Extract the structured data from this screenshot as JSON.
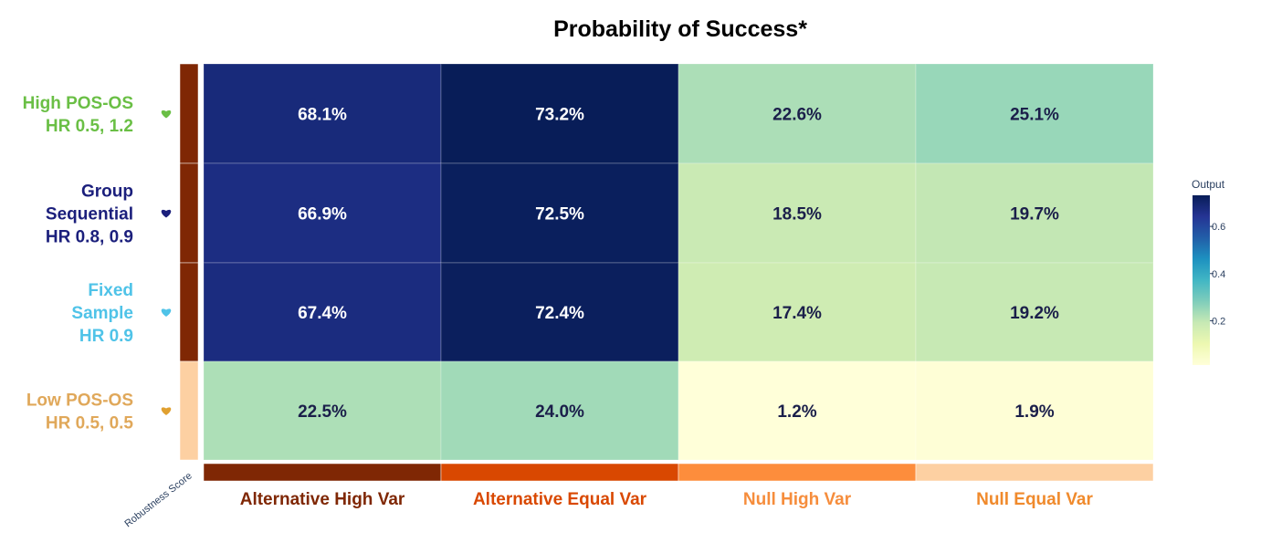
{
  "chart_data": {
    "type": "heatmap",
    "title": "Probability of Success*",
    "rows": [
      {
        "label_lines": [
          "High POS-OS",
          "HR 0.5, 1.2"
        ],
        "color": "#6abf45",
        "heart_color": "#6abf45",
        "band_color": "#7f2704"
      },
      {
        "label_lines": [
          "Group",
          "Sequential",
          "HR 0.8, 0.9"
        ],
        "color": "#1b1f7c",
        "heart_color": "#1b1f7c",
        "band_color": "#7f2704"
      },
      {
        "label_lines": [
          "Fixed",
          "Sample",
          "HR 0.9"
        ],
        "color": "#4fc3e8",
        "heart_color": "#4fc3e8",
        "band_color": "#7f2704"
      },
      {
        "label_lines": [
          "Low POS-OS",
          "HR 0.5, 0.5"
        ],
        "color": "#e0a85a",
        "heart_color": "#e0a030",
        "band_color": "#fdd0a2"
      }
    ],
    "columns": [
      {
        "label": "Alternative High Var",
        "color": "#7f2704",
        "band_color": "#7f2704"
      },
      {
        "label": "Alternative Equal Var",
        "color": "#d94801",
        "band_color": "#d94801"
      },
      {
        "label": "Null High Var",
        "color": "#f68d3c",
        "band_color": "#fd8d3c"
      },
      {
        "label": "Null Equal Var",
        "color": "#f08a2c",
        "band_color": "#fdd0a2"
      }
    ],
    "values": [
      [
        0.681,
        0.732,
        0.226,
        0.251
      ],
      [
        0.669,
        0.725,
        0.185,
        0.197
      ],
      [
        0.674,
        0.724,
        0.174,
        0.192
      ],
      [
        0.225,
        0.24,
        0.012,
        0.019
      ]
    ],
    "value_labels": [
      [
        "68.1%",
        "73.2%",
        "22.6%",
        "25.1%"
      ],
      [
        "66.9%",
        "72.5%",
        "18.5%",
        "19.7%"
      ],
      [
        "67.4%",
        "72.4%",
        "17.4%",
        "19.2%"
      ],
      [
        "22.5%",
        "24.0%",
        "1.2%",
        "1.9%"
      ]
    ],
    "colorscale": "YlGnBu",
    "colorbar": {
      "title": "Output",
      "ticks": [
        0.2,
        0.4,
        0.6
      ],
      "tick_labels": [
        "0.2",
        "0.4",
        "0.6"
      ],
      "range": [
        0.012,
        0.732
      ]
    },
    "corner_label": "Robustness Score",
    "heart_icon": "heart-icon"
  }
}
